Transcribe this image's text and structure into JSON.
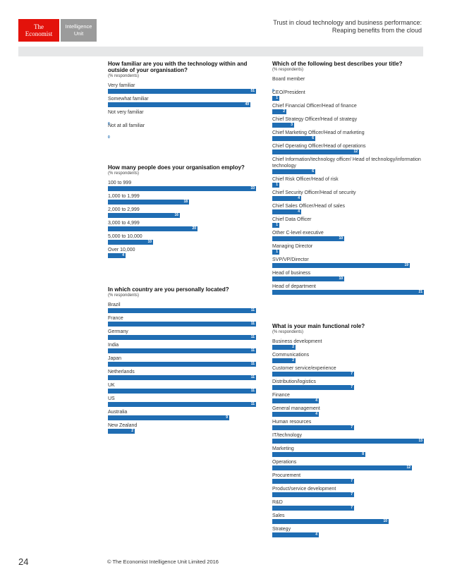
{
  "logo": {
    "brand_line1": "The",
    "brand_line2": "Economist",
    "unit_line1": "Intelligence",
    "unit_line2": "Unit"
  },
  "header": {
    "line1": "Trust in cloud technology and business performance:",
    "line2": "Reaping benefits from the cloud"
  },
  "colors": {
    "bar": "#1f6db3",
    "brand_red": "#e3120b"
  },
  "charts": [
    {
      "id": "familiar",
      "question": "How familiar are you with the technology within and outside of your organisation?",
      "subtitle": "(% respondents)",
      "max": 51,
      "items": [
        {
          "label": "Very familiar",
          "value": 51
        },
        {
          "label": "Somewhat familiar",
          "value": 49
        },
        {
          "label": "Not very familiar",
          "value": 0
        },
        {
          "label": "Not at all familiar",
          "value": 0
        }
      ]
    },
    {
      "id": "employees",
      "question": "How many people does your organisation employ?",
      "subtitle": "(% respondents)",
      "max": 33,
      "items": [
        {
          "label": "100 to 999",
          "value": 33
        },
        {
          "label": "1,000 to 1,999",
          "value": 18
        },
        {
          "label": "2,000 to 2,999",
          "value": 16
        },
        {
          "label": "3,000 to 4,999",
          "value": 20
        },
        {
          "label": "5,000 to 10,000",
          "value": 10
        },
        {
          "label": "Over 10,000",
          "value": 4
        }
      ]
    },
    {
      "id": "country",
      "question": "In which country are you personally located?",
      "subtitle": "(% respondents)",
      "max": 11,
      "items": [
        {
          "label": "Brazil",
          "value": 11
        },
        {
          "label": "France",
          "value": 11
        },
        {
          "label": "Germany",
          "value": 11
        },
        {
          "label": "India",
          "value": 11
        },
        {
          "label": "Japan",
          "value": 11
        },
        {
          "label": "Netherlands",
          "value": 11
        },
        {
          "label": "UK",
          "value": 11
        },
        {
          "label": "US",
          "value": 11
        },
        {
          "label": "Australia",
          "value": 9
        },
        {
          "label": "New Zealand",
          "value": 2
        }
      ]
    },
    {
      "id": "title",
      "question": "Which of the following best describes your title?",
      "subtitle": "(% respondents)",
      "max": 21,
      "items": [
        {
          "label": "Board member",
          "value": 0
        },
        {
          "label": "CEO/President",
          "value": 1
        },
        {
          "label": "Chief Financial Officer/Head of finance",
          "value": 2
        },
        {
          "label": "Chief Strategy Officer/Head of strategy",
          "value": 3
        },
        {
          "label": "Chief Marketing Officer/Head of marketing",
          "value": 6
        },
        {
          "label": "Chief Operating Officer/Head of operations",
          "value": 12
        },
        {
          "label": "Chief Information/technology officer/ Head of technology/information technology",
          "value": 6
        },
        {
          "label": "Chief Risk Officer/Head of risk",
          "value": 1
        },
        {
          "label": "Chief Security Officer/Head of security",
          "value": 4
        },
        {
          "label": "Chief Sales Officer/Head of sales",
          "value": 4
        },
        {
          "label": "Chief Data Officer",
          "value": 1
        },
        {
          "label": "Other C-level executive",
          "value": 10
        },
        {
          "label": "Managing Director",
          "value": 1
        },
        {
          "label": "SVP/VP/Director",
          "value": 19
        },
        {
          "label": "Head of business",
          "value": 10
        },
        {
          "label": "Head of department",
          "value": 21
        }
      ]
    },
    {
      "id": "role",
      "question": "What is your main functional role?",
      "subtitle": "(% respondents)",
      "max": 13,
      "items": [
        {
          "label": "Business development",
          "value": 2
        },
        {
          "label": "Communications",
          "value": 2
        },
        {
          "label": "Customer service/experience",
          "value": 7
        },
        {
          "label": "Distribution/logistics",
          "value": 7
        },
        {
          "label": "Finance",
          "value": 4
        },
        {
          "label": "General management",
          "value": 4
        },
        {
          "label": "Human resources",
          "value": 7
        },
        {
          "label": "IT/technology",
          "value": 13
        },
        {
          "label": "Marketing",
          "value": 8
        },
        {
          "label": "Operations",
          "value": 12
        },
        {
          "label": "Procurement",
          "value": 7
        },
        {
          "label": "Product/service development",
          "value": 7
        },
        {
          "label": "R&D",
          "value": 7
        },
        {
          "label": "Sales",
          "value": 10
        },
        {
          "label": "Strategy",
          "value": 4
        }
      ]
    }
  ],
  "footer": {
    "page_number": "24",
    "copyright": "© The Economist Intelligence Unit Limited 2016"
  }
}
